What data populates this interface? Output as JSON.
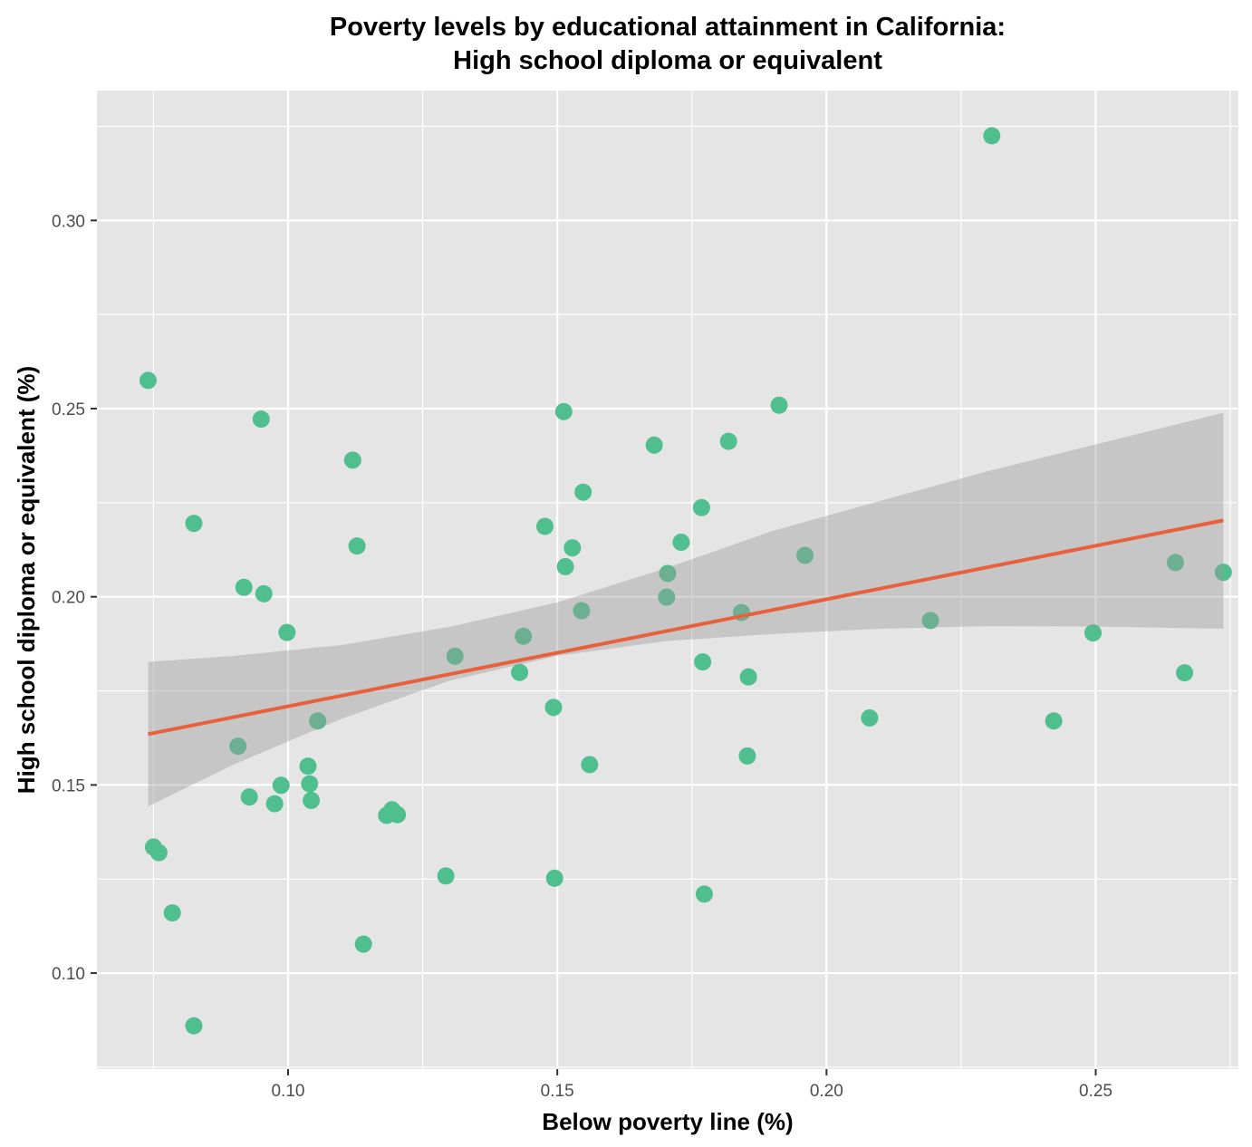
{
  "chart_data": {
    "type": "scatter",
    "title": "Poverty levels by educational attainment in California:",
    "subtitle": "High school diploma or equivalent",
    "xlabel": "Below poverty line (%)",
    "ylabel": "High school diploma or equivalent (%)",
    "xlim": [
      0.0645,
      0.2765
    ],
    "ylim": [
      0.0745,
      0.3345
    ],
    "xticks": [
      0.1,
      0.15,
      0.2,
      0.25
    ],
    "xtick_labels": [
      "0.10",
      "0.15",
      "0.20",
      "0.25"
    ],
    "yticks": [
      0.1,
      0.15,
      0.2,
      0.25,
      0.3
    ],
    "ytick_labels": [
      "0.10",
      "0.15",
      "0.20",
      "0.25",
      "0.30"
    ],
    "grid": true,
    "colors": {
      "panel": "#e5e5e5",
      "grid": "#ffffff",
      "points": "#4fbf8f",
      "fit_line": "#e8603c",
      "confidence_band": "#bdbdbd"
    },
    "points": [
      {
        "x": 0.074,
        "y": 0.2575
      },
      {
        "x": 0.075,
        "y": 0.1335
      },
      {
        "x": 0.076,
        "y": 0.132
      },
      {
        "x": 0.0785,
        "y": 0.116
      },
      {
        "x": 0.0825,
        "y": 0.2195
      },
      {
        "x": 0.0825,
        "y": 0.086
      },
      {
        "x": 0.0907,
        "y": 0.1603
      },
      {
        "x": 0.0918,
        "y": 0.2025
      },
      {
        "x": 0.0928,
        "y": 0.1468
      },
      {
        "x": 0.095,
        "y": 0.2472
      },
      {
        "x": 0.0955,
        "y": 0.2008
      },
      {
        "x": 0.0975,
        "y": 0.145
      },
      {
        "x": 0.0987,
        "y": 0.1499
      },
      {
        "x": 0.0998,
        "y": 0.1905
      },
      {
        "x": 0.1037,
        "y": 0.155
      },
      {
        "x": 0.104,
        "y": 0.1503
      },
      {
        "x": 0.1043,
        "y": 0.1459
      },
      {
        "x": 0.1055,
        "y": 0.167
      },
      {
        "x": 0.112,
        "y": 0.2363
      },
      {
        "x": 0.1128,
        "y": 0.2135
      },
      {
        "x": 0.114,
        "y": 0.1077
      },
      {
        "x": 0.1183,
        "y": 0.1419
      },
      {
        "x": 0.1193,
        "y": 0.1434
      },
      {
        "x": 0.1203,
        "y": 0.1421
      },
      {
        "x": 0.1293,
        "y": 0.1258
      },
      {
        "x": 0.131,
        "y": 0.1842
      },
      {
        "x": 0.143,
        "y": 0.1799
      },
      {
        "x": 0.1437,
        "y": 0.1895
      },
      {
        "x": 0.1477,
        "y": 0.2187
      },
      {
        "x": 0.1493,
        "y": 0.1706
      },
      {
        "x": 0.1495,
        "y": 0.1252
      },
      {
        "x": 0.1512,
        "y": 0.2492
      },
      {
        "x": 0.1515,
        "y": 0.208
      },
      {
        "x": 0.1528,
        "y": 0.213
      },
      {
        "x": 0.1545,
        "y": 0.1963
      },
      {
        "x": 0.1548,
        "y": 0.2278
      },
      {
        "x": 0.156,
        "y": 0.1554
      },
      {
        "x": 0.168,
        "y": 0.2403
      },
      {
        "x": 0.1703,
        "y": 0.1999
      },
      {
        "x": 0.1705,
        "y": 0.2062
      },
      {
        "x": 0.173,
        "y": 0.2145
      },
      {
        "x": 0.1768,
        "y": 0.2237
      },
      {
        "x": 0.177,
        "y": 0.1827
      },
      {
        "x": 0.1773,
        "y": 0.121
      },
      {
        "x": 0.1818,
        "y": 0.2413
      },
      {
        "x": 0.1842,
        "y": 0.1958
      },
      {
        "x": 0.1853,
        "y": 0.1577
      },
      {
        "x": 0.1855,
        "y": 0.1787
      },
      {
        "x": 0.1912,
        "y": 0.2509
      },
      {
        "x": 0.196,
        "y": 0.211
      },
      {
        "x": 0.208,
        "y": 0.1678
      },
      {
        "x": 0.2193,
        "y": 0.1937
      },
      {
        "x": 0.2307,
        "y": 0.3225
      },
      {
        "x": 0.2422,
        "y": 0.167
      },
      {
        "x": 0.2495,
        "y": 0.1904
      },
      {
        "x": 0.2648,
        "y": 0.2091
      },
      {
        "x": 0.2665,
        "y": 0.1798
      },
      {
        "x": 0.2737,
        "y": 0.2065
      }
    ],
    "fit_line": {
      "x": [
        0.074,
        0.2737
      ],
      "y": [
        0.1635,
        0.2203
      ]
    },
    "confidence_band": {
      "x": [
        0.074,
        0.09,
        0.11,
        0.13,
        0.15,
        0.17,
        0.19,
        0.21,
        0.23,
        0.25,
        0.2737
      ],
      "lower": [
        0.1443,
        0.1555,
        0.1676,
        0.1777,
        0.1843,
        0.1882,
        0.1901,
        0.1915,
        0.1922,
        0.1921,
        0.1915
      ],
      "upper": [
        0.1827,
        0.1843,
        0.1872,
        0.192,
        0.1985,
        0.2075,
        0.2175,
        0.2255,
        0.2334,
        0.2405,
        0.2489
      ]
    }
  }
}
